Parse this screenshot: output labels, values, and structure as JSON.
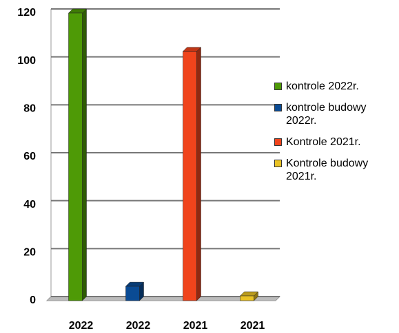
{
  "chart_data": {
    "type": "bar",
    "categories": [
      "2022",
      "2022",
      "2021",
      "2021"
    ],
    "series": [
      {
        "name": "kontrole 2022r.",
        "color": "#4e9a06",
        "values": [
          120,
          null,
          null,
          null
        ]
      },
      {
        "name": "kontrole budowy 2022r.",
        "color": "#0a4b94",
        "values": [
          null,
          6,
          null,
          null
        ]
      },
      {
        "name": "Kontrole 2021r.",
        "color": "#f0441c",
        "values": [
          null,
          null,
          104,
          null
        ]
      },
      {
        "name": "Kontrole budowy 2021r.",
        "color": "#e9c224",
        "values": [
          null,
          null,
          null,
          2
        ]
      }
    ],
    "ylim": [
      0,
      120
    ],
    "yticks": [
      0,
      20,
      40,
      60,
      80,
      100,
      120
    ],
    "grid": true,
    "legend": "right"
  }
}
